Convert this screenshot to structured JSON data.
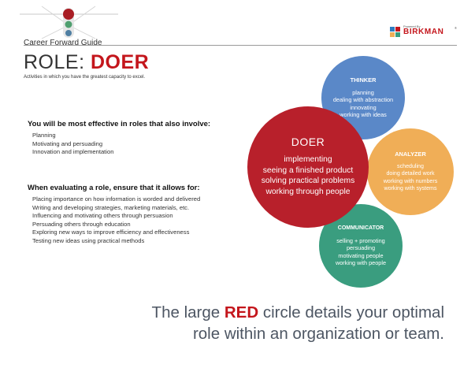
{
  "header": {
    "guide_title": "Career Forward Guide",
    "brand_powered": "Powered By",
    "brand_name": "BIRKMAN",
    "brand_mark": "®"
  },
  "role": {
    "prefix": "ROLE: ",
    "name": "DOER",
    "subtitle": "Activities in which you have the greatest capacity to excel."
  },
  "effective": {
    "heading": "You will be most effective in roles that also involve:",
    "items": [
      "Planning",
      "Motivating and persuading",
      "Innovation and implementation"
    ]
  },
  "evaluating": {
    "heading": "When evaluating a role, ensure that it allows for:",
    "items": [
      "Placing importance on how information is worded and delivered",
      "Writing and developing strategies, marketing materials, etc.",
      "Influencing and motivating others through persuasion",
      "Persuading others through education",
      "Exploring new ways to improve efficiency and effectiveness",
      "Testing new ideas using practical methods"
    ]
  },
  "circles": {
    "doer": {
      "title": "DOER",
      "lines": [
        "implementing",
        "seeing a finished product",
        "solving practical problems",
        "working through people"
      ],
      "color": "#b8202b"
    },
    "thinker": {
      "title": "THINKER",
      "lines": [
        "planning",
        "dealing with abstraction",
        "innovating",
        "working with ideas"
      ],
      "color": "#5a88c8"
    },
    "analyzer": {
      "title": "ANALYZER",
      "lines": [
        "scheduling",
        "doing detailed work",
        "working with numbers",
        "working with systems"
      ],
      "color": "#f0ae57"
    },
    "communicator": {
      "title": "COMMUNICATOR",
      "lines": [
        "selling + promoting",
        "persuading",
        "motivating people",
        "working with people"
      ],
      "color": "#3a9d7f"
    }
  },
  "tagline": {
    "before": "The large ",
    "red": "RED",
    "after": " circle details your optimal",
    "line2": "role within an organization or team."
  },
  "colors": {
    "accent": "#c4161c",
    "header_line": "#9a9a9a",
    "tagline": "#4d5663"
  }
}
